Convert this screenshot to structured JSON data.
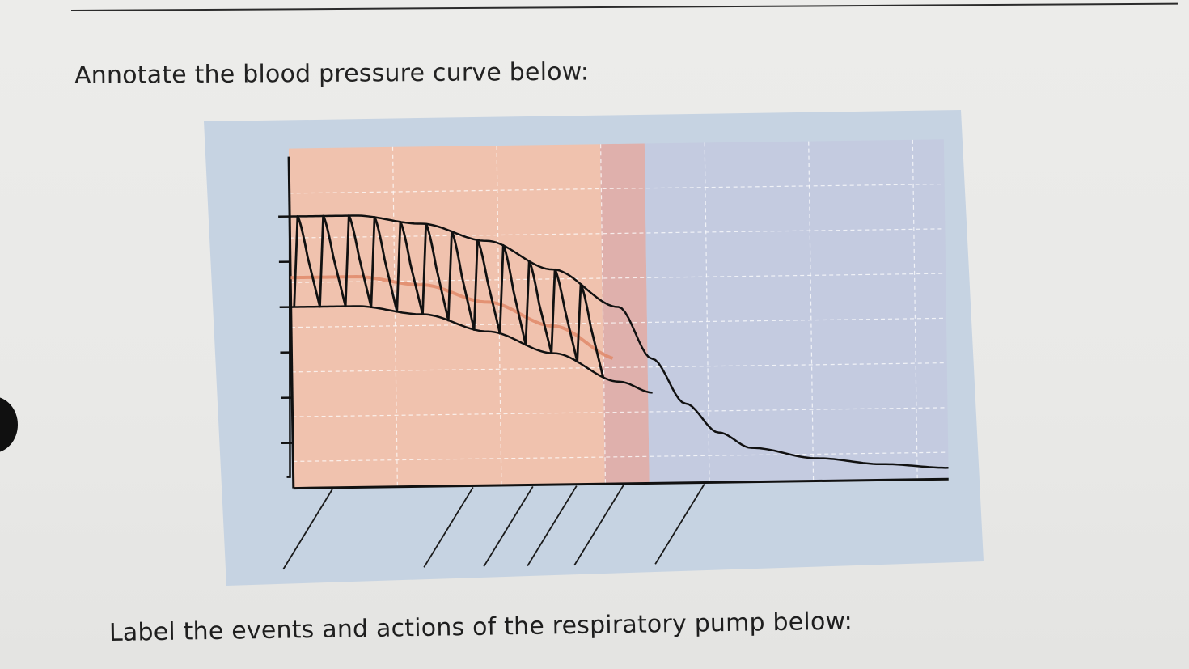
{
  "document": {
    "heading_1": "Annotate the blood pressure curve below:",
    "heading_2": "Label the events and actions of the respiratory pump below:"
  },
  "chart_data": {
    "type": "line",
    "title": "",
    "xlabel": "",
    "ylabel": "",
    "grid": true,
    "legend": "none",
    "y_tick_count": 6,
    "x_label_lines": 7,
    "regions": [
      {
        "name": "",
        "color": "#f0c2ae"
      },
      {
        "name": "",
        "color": "#dfb0ac"
      },
      {
        "name": "",
        "color": "#c4cbe0"
      }
    ],
    "series": [
      {
        "color": "#111111",
        "x": [
          0,
          10,
          20,
          30,
          40,
          50,
          55,
          60,
          65,
          70,
          80,
          90,
          100
        ],
        "upper": [
          120,
          120,
          116,
          108,
          95,
          78,
          55,
          35,
          22,
          15,
          10,
          7,
          5
        ],
        "lower": [
          80,
          80,
          76,
          68,
          58,
          45,
          40,
          35,
          22,
          15,
          10,
          7,
          5
        ]
      },
      {
        "color": "#e0896a",
        "x": [
          0,
          10,
          20,
          30,
          40,
          50,
          55
        ],
        "values": [
          93,
          93,
          89,
          81,
          70,
          55,
          45
        ]
      }
    ]
  }
}
